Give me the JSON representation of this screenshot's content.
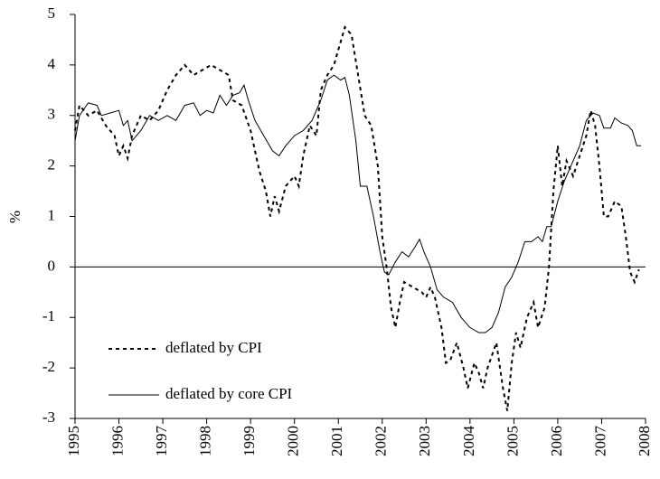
{
  "chart_data": {
    "type": "line",
    "ylabel": "%",
    "xlim": [
      1995,
      2008
    ],
    "xticks": [
      1995,
      1996,
      1997,
      1998,
      1999,
      2000,
      2001,
      2002,
      2003,
      2004,
      2005,
      2006,
      2007,
      2008
    ],
    "ylim": [
      -3,
      5
    ],
    "yticks": [
      -3,
      -2,
      -1,
      0,
      1,
      2,
      3,
      4,
      5
    ],
    "zero_line": true,
    "legend": "lower left",
    "series": [
      {
        "name": "deflated by CPI",
        "color": "#000000",
        "style": "dotted",
        "x": [
          1995.0,
          1995.1,
          1995.3,
          1995.5,
          1995.7,
          1995.9,
          1996.0,
          1996.1,
          1996.2,
          1996.3,
          1996.5,
          1996.7,
          1996.9,
          1997.1,
          1997.3,
          1997.5,
          1997.7,
          1997.9,
          1998.1,
          1998.3,
          1998.5,
          1998.6,
          1998.8,
          1999.0,
          1999.2,
          1999.35,
          1999.45,
          1999.55,
          1999.65,
          1999.8,
          2000.0,
          2000.1,
          2000.2,
          2000.35,
          2000.5,
          2000.6,
          2000.75,
          2000.9,
          2001.0,
          2001.15,
          2001.3,
          2001.45,
          2001.6,
          2001.75,
          2001.9,
          2002.0,
          2002.1,
          2002.2,
          2002.3,
          2002.4,
          2002.5,
          2002.7,
          2002.9,
          2003.0,
          2003.1,
          2003.2,
          2003.35,
          2003.45,
          2003.55,
          2003.7,
          2003.85,
          2003.95,
          2004.1,
          2004.2,
          2004.3,
          2004.4,
          2004.6,
          2004.75,
          2004.85,
          2004.95,
          2005.05,
          2005.15,
          2005.3,
          2005.45,
          2005.55,
          2005.7,
          2005.8,
          2005.9,
          2006.0,
          2006.1,
          2006.2,
          2006.35,
          2006.5,
          2006.65,
          2006.75,
          2006.85,
          2006.95,
          2007.05,
          2007.15,
          2007.3,
          2007.45,
          2007.55,
          2007.65,
          2007.75,
          2007.85
        ],
        "values": [
          2.7,
          3.2,
          3.0,
          3.1,
          2.8,
          2.6,
          2.2,
          2.4,
          2.15,
          2.6,
          3.0,
          2.9,
          3.1,
          3.5,
          3.8,
          4.0,
          3.8,
          3.9,
          4.0,
          3.9,
          3.8,
          3.3,
          3.2,
          2.7,
          1.9,
          1.5,
          1.0,
          1.4,
          1.1,
          1.6,
          1.8,
          1.6,
          2.2,
          2.8,
          2.6,
          3.5,
          3.8,
          4.0,
          4.3,
          4.75,
          4.6,
          3.8,
          3.0,
          2.8,
          2.0,
          0.6,
          0.0,
          -0.8,
          -1.2,
          -0.7,
          -0.3,
          -0.4,
          -0.5,
          -0.6,
          -0.4,
          -0.6,
          -1.2,
          -1.9,
          -1.85,
          -1.5,
          -2.0,
          -2.4,
          -1.9,
          -2.1,
          -2.4,
          -2.0,
          -1.5,
          -2.4,
          -2.85,
          -1.9,
          -1.3,
          -1.6,
          -1.0,
          -0.7,
          -1.2,
          -0.8,
          0.0,
          1.5,
          2.4,
          1.6,
          2.1,
          1.8,
          2.2,
          2.6,
          3.1,
          2.8,
          2.0,
          1.0,
          1.0,
          1.3,
          1.2,
          0.6,
          -0.1,
          -0.3,
          -0.05
        ]
      },
      {
        "name": "deflated by core CPI",
        "color": "#000000",
        "style": "solid",
        "x": [
          1995.0,
          1995.1,
          1995.3,
          1995.5,
          1995.6,
          1995.8,
          1996.0,
          1996.1,
          1996.2,
          1996.3,
          1996.5,
          1996.7,
          1996.9,
          1997.1,
          1997.3,
          1997.5,
          1997.7,
          1997.85,
          1998.0,
          1998.15,
          1998.3,
          1998.45,
          1998.6,
          1998.75,
          1998.85,
          1998.95,
          1999.1,
          1999.3,
          1999.5,
          1999.65,
          1999.8,
          2000.0,
          2000.2,
          2000.4,
          2000.6,
          2000.75,
          2000.9,
          2001.05,
          2001.15,
          2001.25,
          2001.4,
          2001.5,
          2001.65,
          2001.8,
          2001.95,
          2002.05,
          2002.15,
          2002.3,
          2002.45,
          2002.6,
          2002.75,
          2002.85,
          2002.95,
          2003.1,
          2003.25,
          2003.4,
          2003.6,
          2003.8,
          2004.0,
          2004.2,
          2004.35,
          2004.5,
          2004.65,
          2004.8,
          2004.95,
          2005.1,
          2005.25,
          2005.4,
          2005.55,
          2005.65,
          2005.75,
          2005.85,
          2006.0,
          2006.15,
          2006.3,
          2006.5,
          2006.65,
          2006.8,
          2006.95,
          2007.05,
          2007.2,
          2007.3,
          2007.45,
          2007.6,
          2007.7,
          2007.8,
          2007.9
        ],
        "values": [
          2.5,
          3.0,
          3.25,
          3.2,
          3.0,
          3.05,
          3.1,
          2.8,
          2.9,
          2.5,
          2.7,
          3.0,
          2.9,
          3.0,
          2.9,
          3.2,
          3.25,
          3.0,
          3.1,
          3.05,
          3.4,
          3.2,
          3.4,
          3.45,
          3.6,
          3.3,
          2.9,
          2.6,
          2.3,
          2.2,
          2.4,
          2.6,
          2.7,
          2.9,
          3.3,
          3.7,
          3.8,
          3.7,
          3.75,
          3.4,
          2.5,
          1.6,
          1.6,
          1.0,
          0.3,
          -0.1,
          -0.15,
          0.1,
          0.3,
          0.2,
          0.4,
          0.55,
          0.3,
          0.0,
          -0.45,
          -0.6,
          -0.7,
          -1.0,
          -1.2,
          -1.3,
          -1.3,
          -1.2,
          -0.9,
          -0.4,
          -0.2,
          0.1,
          0.5,
          0.5,
          0.6,
          0.5,
          0.8,
          0.8,
          1.3,
          1.7,
          2.0,
          2.4,
          2.9,
          3.05,
          3.0,
          2.75,
          2.75,
          2.95,
          2.85,
          2.8,
          2.7,
          2.4,
          2.4
        ]
      }
    ]
  }
}
